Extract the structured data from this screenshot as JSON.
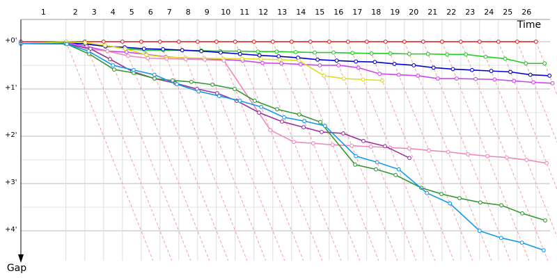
{
  "chart_data": {
    "type": "line",
    "x_label": "Time",
    "y_label": "Gap",
    "lap_labels": [
      "1",
      "2",
      "3",
      "4",
      "5",
      "6",
      "7",
      "8",
      "9",
      "10",
      "11",
      "12",
      "13",
      "14",
      "15",
      "16",
      "17",
      "18",
      "19",
      "20",
      "21",
      "22",
      "23",
      "24",
      "25",
      "26"
    ],
    "lap_times": [
      2.4,
      3.4,
      4.4,
      5.4,
      6.4,
      7.4,
      8.4,
      9.4,
      10.4,
      11.4,
      12.4,
      13.4,
      14.4,
      15.4,
      16.4,
      17.4,
      18.4,
      19.4,
      20.4,
      21.4,
      22.4,
      23.4,
      24.4,
      25.4,
      26.4,
      27.4
    ],
    "xlim": [
      0,
      28.4
    ],
    "ylim": [
      -0.44,
      4.63
    ],
    "yticks": [
      {
        "value": 0,
        "label": "+0'"
      },
      {
        "value": 1,
        "label": "+1'"
      },
      {
        "value": 2,
        "label": "+2'"
      },
      {
        "value": 3,
        "label": "+3'"
      },
      {
        "value": 4,
        "label": "+4'"
      }
    ],
    "minor_yticks": [
      0.5,
      1.5,
      2.5,
      3.5
    ],
    "grid": true,
    "series": [
      {
        "color": "#ee2222",
        "x": [
          0,
          2.4,
          3.4,
          4.4,
          5.4,
          6.4,
          7.4,
          8.4,
          9.4,
          10.4,
          11.4,
          12.4,
          13.4,
          14.4,
          15.4,
          16.4,
          17.4,
          18.4,
          19.4,
          20.4,
          21.4,
          22.4,
          23.4,
          24.4,
          25.4,
          26.4,
          27.4
        ],
        "values": [
          0,
          0,
          0,
          0,
          0,
          0,
          0,
          0,
          0,
          0,
          0,
          0,
          0,
          0,
          0,
          0,
          0,
          0,
          0,
          0,
          0,
          0,
          0,
          0,
          0,
          0,
          0
        ]
      },
      {
        "color": "#22cc22",
        "x": [
          0,
          2.43,
          3.44,
          4.48,
          5.55,
          6.58,
          7.58,
          8.58,
          9.59,
          10.6,
          11.6,
          12.61,
          13.61,
          14.62,
          15.63,
          16.63,
          17.64,
          18.65,
          19.65,
          20.66,
          21.66,
          22.67,
          23.67,
          24.72,
          25.76,
          26.86,
          27.86
        ],
        "values": [
          0.04,
          0.03,
          0.04,
          0.08,
          0.15,
          0.18,
          0.18,
          0.18,
          0.19,
          0.2,
          0.2,
          0.21,
          0.21,
          0.22,
          0.23,
          0.23,
          0.24,
          0.25,
          0.25,
          0.26,
          0.26,
          0.27,
          0.27,
          0.32,
          0.36,
          0.46,
          0.46
        ]
      },
      {
        "color": "#0000cc",
        "x": [
          0,
          2.43,
          3.45,
          4.5,
          5.52,
          6.55,
          7.56,
          8.58,
          9.6,
          10.63,
          11.66,
          12.69,
          13.71,
          14.74,
          15.78,
          16.8,
          17.82,
          18.83,
          19.87,
          20.9,
          21.95,
          22.98,
          24.0,
          25.02,
          26.04,
          27.1,
          28.12
        ],
        "values": [
          0.04,
          0.03,
          0.05,
          0.1,
          0.12,
          0.15,
          0.16,
          0.18,
          0.2,
          0.23,
          0.26,
          0.29,
          0.31,
          0.34,
          0.38,
          0.4,
          0.42,
          0.43,
          0.47,
          0.5,
          0.55,
          0.58,
          0.6,
          0.62,
          0.64,
          0.7,
          0.72
        ]
      },
      {
        "color": "#cc44ee",
        "x": [
          0,
          2.42,
          3.5,
          4.6,
          5.62,
          6.67,
          7.72,
          8.75,
          9.76,
          10.78,
          11.8,
          12.85,
          13.86,
          14.88,
          15.9,
          16.9,
          17.95,
          19.08,
          20.1,
          21.12,
          22.18,
          23.18,
          24.19,
          25.2,
          26.23,
          27.26,
          28.28
        ],
        "values": [
          0.04,
          0.02,
          0.1,
          0.2,
          0.22,
          0.27,
          0.32,
          0.35,
          0.36,
          0.38,
          0.4,
          0.45,
          0.46,
          0.48,
          0.5,
          0.5,
          0.55,
          0.68,
          0.7,
          0.72,
          0.78,
          0.78,
          0.79,
          0.8,
          0.83,
          0.86,
          0.88
        ]
      },
      {
        "color": "#dddd22",
        "x": [
          0,
          2.4,
          3.42,
          4.48,
          5.55,
          6.68,
          7.73,
          8.74,
          9.75,
          10.76,
          11.76,
          12.77,
          13.78,
          14.8,
          16.12,
          17.18,
          18.2,
          19.22
        ],
        "values": [
          0.04,
          0,
          0.02,
          0.08,
          0.15,
          0.28,
          0.33,
          0.34,
          0.35,
          0.36,
          0.36,
          0.37,
          0.38,
          0.4,
          0.72,
          0.78,
          0.8,
          0.82
        ]
      },
      {
        "color": "#ee88bb",
        "x": [
          0,
          2.45,
          3.55,
          4.6,
          5.7,
          6.75,
          7.76,
          8.77,
          9.78,
          10.8,
          13.27,
          14.52,
          15.55,
          16.58,
          17.6,
          18.62,
          19.64,
          20.66,
          21.7,
          22.73,
          23.78,
          24.82,
          25.85,
          26.9,
          27.97
        ],
        "values": [
          0.04,
          0.05,
          0.15,
          0.2,
          0.3,
          0.35,
          0.36,
          0.37,
          0.38,
          0.4,
          1.87,
          2.12,
          2.15,
          2.18,
          2.2,
          2.22,
          2.24,
          2.26,
          2.3,
          2.33,
          2.38,
          2.42,
          2.45,
          2.5,
          2.57
        ]
      },
      {
        "color": "#993399",
        "x": [
          0,
          2.37,
          3.7,
          4.74,
          5.93,
          7.11,
          8.22,
          9.37,
          10.44,
          11.48,
          12.67,
          13.89,
          15.04,
          16.0,
          17.15,
          18.22,
          19.37,
          20.67
        ],
        "values": [
          0.04,
          0.04,
          0.15,
          0.37,
          0.63,
          0.78,
          0.88,
          1.0,
          1.09,
          1.25,
          1.5,
          1.69,
          1.81,
          1.91,
          1.94,
          2.1,
          2.21,
          2.46
        ]
      },
      {
        "color": "#339933",
        "x": [
          0,
          2.37,
          3.63,
          4.96,
          6.0,
          7.11,
          8.07,
          9.07,
          10.19,
          11.37,
          12.44,
          13.63,
          14.81,
          15.93,
          17.78,
          18.89,
          19.93,
          21.3,
          22.37,
          23.33,
          24.44,
          25.56,
          26.67,
          27.89
        ],
        "values": [
          0.04,
          0.04,
          0.26,
          0.59,
          0.66,
          0.78,
          0.82,
          0.85,
          0.91,
          1.0,
          1.25,
          1.43,
          1.54,
          1.7,
          2.6,
          2.7,
          2.82,
          3.09,
          3.22,
          3.31,
          3.4,
          3.46,
          3.63,
          3.78
        ]
      },
      {
        "color": "#1199ee",
        "x": [
          0,
          2.45,
          3.6,
          4.9,
          6.0,
          7.1,
          8.3,
          9.45,
          10.55,
          11.65,
          12.78,
          14.0,
          15.08,
          16.18,
          17.82,
          18.95,
          20.1,
          21.6,
          22.82,
          24.4,
          25.55,
          26.65,
          27.81
        ],
        "values": [
          0.04,
          0.05,
          0.2,
          0.5,
          0.6,
          0.7,
          0.9,
          1.05,
          1.15,
          1.25,
          1.38,
          1.6,
          1.68,
          1.78,
          2.42,
          2.55,
          2.7,
          3.2,
          3.42,
          4.0,
          4.15,
          4.25,
          4.41
        ]
      }
    ]
  }
}
